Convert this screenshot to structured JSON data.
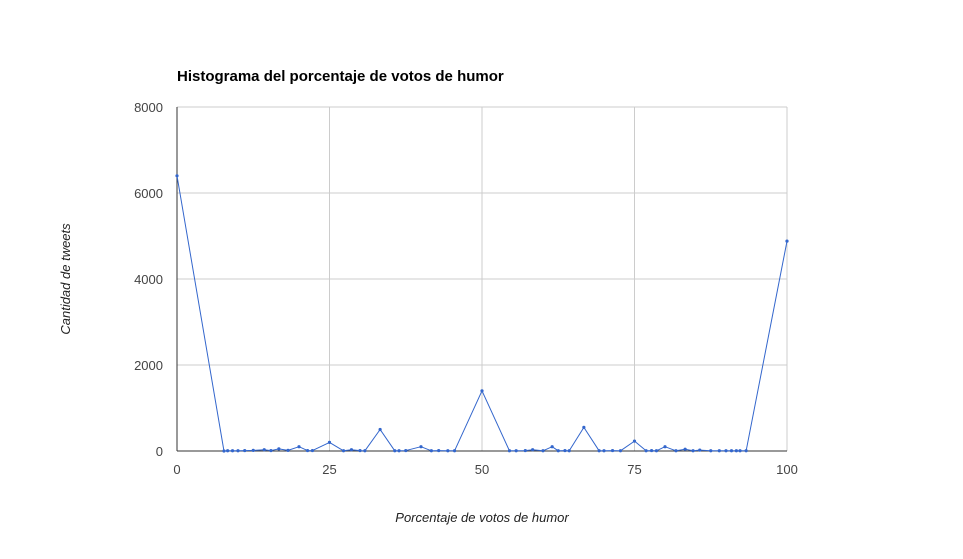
{
  "chart_data": {
    "type": "line",
    "title": "Histograma del porcentaje de votos de humor",
    "xlabel": "Porcentaje de votos de humor",
    "ylabel": "Cantidad de tweets",
    "xlim": [
      0,
      100
    ],
    "ylim": [
      0,
      8000
    ],
    "xticks": [
      0,
      25,
      50,
      75,
      100
    ],
    "yticks": [
      0,
      2000,
      4000,
      6000,
      8000
    ],
    "xtick_labels": [
      "0",
      "25",
      "50",
      "75",
      "100"
    ],
    "ytick_labels": [
      "0",
      "2000",
      "4000",
      "6000",
      "8000"
    ],
    "grid": true,
    "legend": "none",
    "line_color": "#3366cc",
    "x": [
      0,
      7.7,
      8.3,
      9.1,
      10,
      11.1,
      12.5,
      14.3,
      15.4,
      16.7,
      18.2,
      20,
      21.4,
      22.2,
      25,
      27.3,
      28.6,
      30,
      30.8,
      33.3,
      35.7,
      36.4,
      37.5,
      40,
      41.7,
      42.9,
      44.4,
      45.5,
      50,
      54.5,
      55.6,
      57.1,
      58.3,
      60,
      61.5,
      62.5,
      63.6,
      64.3,
      66.7,
      69.2,
      70,
      71.4,
      72.7,
      75,
      76.9,
      77.8,
      78.6,
      80,
      81.8,
      83.3,
      84.6,
      85.7,
      87.5,
      88.9,
      90,
      90.9,
      91.7,
      92.3,
      93.3,
      100
    ],
    "y": [
      6400,
      0,
      5,
      5,
      5,
      10,
      15,
      30,
      10,
      50,
      15,
      100,
      10,
      10,
      200,
      5,
      30,
      10,
      5,
      500,
      5,
      5,
      10,
      100,
      5,
      10,
      5,
      5,
      1400,
      5,
      5,
      10,
      30,
      5,
      100,
      5,
      10,
      5,
      550,
      5,
      5,
      10,
      5,
      230,
      5,
      10,
      5,
      100,
      5,
      40,
      5,
      20,
      5,
      5,
      5,
      5,
      5,
      5,
      5,
      4880
    ]
  }
}
